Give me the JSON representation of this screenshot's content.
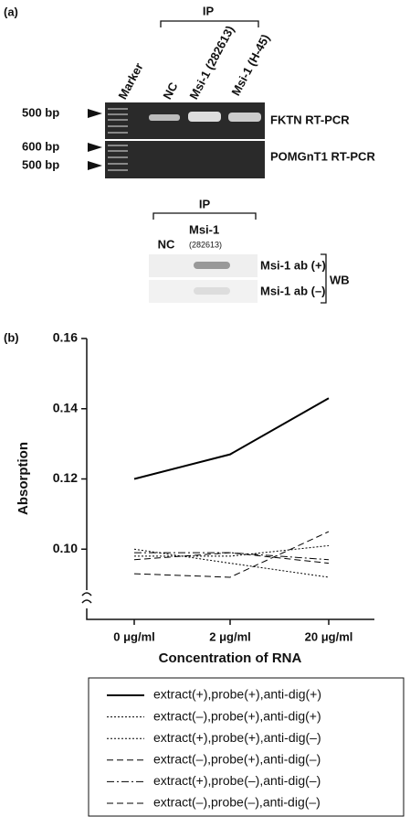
{
  "panel_a": {
    "label": "(a)",
    "ip": "IP",
    "lanes": [
      "Marker",
      "NC",
      "Msi-1 (282613)",
      "Msi-1 (H-45)"
    ],
    "size_markers": [
      "500 bp",
      "600 bp",
      "500 bp"
    ],
    "gel_labels": [
      "FKTN RT-PCR",
      "POMGnT1 RT-PCR"
    ],
    "wb": {
      "ip": "IP",
      "lanes": [
        "NC",
        "Msi-1"
      ],
      "lane_note": "(282613)",
      "rows": [
        "Msi-1 ab (+)",
        "Msi-1 ab (–)"
      ],
      "label": "WB"
    }
  },
  "chart_data": {
    "type": "line",
    "panel_label": "(b)",
    "x_label": "Concentration of RNA",
    "y_label": "Absorption",
    "categories": [
      "0 μg/ml",
      "2 μg/ml",
      "20 μg/ml"
    ],
    "ylim": [
      0.08,
      0.16
    ],
    "yticks": [
      {
        "value": 0.1,
        "label": "0.10"
      },
      0.12,
      0.14,
      0.16
    ],
    "series": [
      {
        "name": "extract(+),probe(+),anti-dig(+)",
        "color": "#000000",
        "dash": "solid",
        "values": [
          0.12,
          0.127,
          0.143
        ]
      },
      {
        "name": "extract(–),probe(+),anti-dig(+)",
        "color": "#000000",
        "dash": "dotted",
        "values": [
          0.1,
          0.096,
          0.092
        ]
      },
      {
        "name": "extract(+),probe(+),anti-dig(–)",
        "color": "#000000",
        "dash": "dotted",
        "values": [
          0.098,
          0.098,
          0.101
        ]
      },
      {
        "name": "extract(–),probe(+),anti-dig(–)",
        "color": "#000000",
        "dash": "dashed",
        "values": [
          0.093,
          0.092,
          0.105
        ]
      },
      {
        "name": "extract(+),probe(–),anti-dig(–)",
        "color": "#000000",
        "dash": "dashdot",
        "values": [
          0.099,
          0.099,
          0.097
        ]
      },
      {
        "name": "extract(–),probe(–),anti-dig(–)",
        "color": "#000000",
        "dash": "dashed",
        "values": [
          0.097,
          0.099,
          0.096
        ]
      }
    ]
  }
}
